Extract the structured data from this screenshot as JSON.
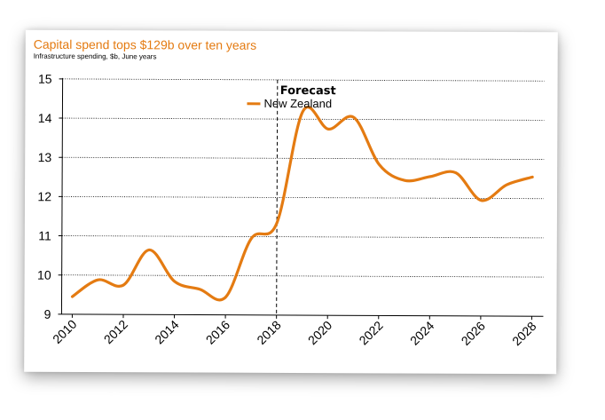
{
  "chart_data": {
    "type": "line",
    "title": "Capital spend tops $129b over ten years",
    "subtitle": "Infrastructure spending, $b, June years",
    "xlabel": "",
    "ylabel": "",
    "ylim": [
      9,
      15
    ],
    "xlim": [
      2010,
      2028
    ],
    "y_ticks": [
      "9",
      "10",
      "11",
      "12",
      "13",
      "14",
      "15"
    ],
    "x_ticks": [
      "2010",
      "2012",
      "2014",
      "2016",
      "2018",
      "2020",
      "2022",
      "2024",
      "2026",
      "2028"
    ],
    "grid": "horizontal dotted",
    "forecast_marker": {
      "x": 2018,
      "label": "Forecast"
    },
    "legend_position": "top-center",
    "series": [
      {
        "name": "New Zealand",
        "color": "#E47B12",
        "x": [
          2010,
          2011,
          2012,
          2013,
          2014,
          2015,
          2016,
          2017,
          2018,
          2019,
          2020,
          2021,
          2022,
          2023,
          2024,
          2025,
          2026,
          2027,
          2028
        ],
        "values": [
          9.45,
          9.88,
          9.75,
          10.65,
          9.85,
          9.65,
          9.45,
          10.95,
          11.35,
          14.2,
          13.75,
          14.05,
          12.85,
          12.45,
          12.55,
          12.65,
          11.95,
          12.35,
          12.55
        ]
      }
    ]
  }
}
